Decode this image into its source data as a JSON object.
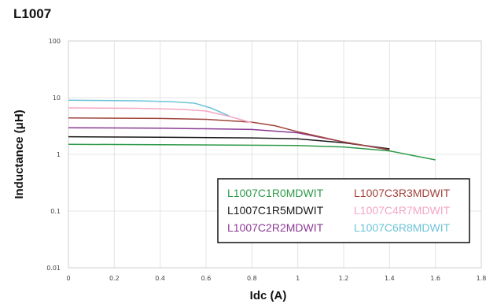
{
  "chart_data": {
    "type": "line",
    "title": "L1007",
    "xlabel": "Idc (A)",
    "ylabel": "Inductance (μH)",
    "xlim": [
      0,
      1.8
    ],
    "ylim": [
      0.01,
      100
    ],
    "yscale": "log",
    "grid": true,
    "legend_placement": "bottom-right",
    "x_ticks": [
      "0",
      "0.2",
      "0.4",
      "0.6",
      "0.8",
      "1",
      "1.2",
      "1.4",
      "1.6",
      "1.8"
    ],
    "y_ticks": [
      "100",
      "10",
      "1",
      "0.1",
      "0.01"
    ],
    "series": [
      {
        "name": "L1007C1R0MDWIT",
        "color": "#2e9a48",
        "points": [
          [
            0,
            1.5
          ],
          [
            0.4,
            1.48
          ],
          [
            0.8,
            1.45
          ],
          [
            1.0,
            1.43
          ],
          [
            1.2,
            1.35
          ],
          [
            1.4,
            1.15
          ],
          [
            1.6,
            0.8
          ]
        ]
      },
      {
        "name": "L1007C1R5MDWIT",
        "color": "#1a1a1a",
        "points": [
          [
            0,
            2.05
          ],
          [
            0.4,
            2.0
          ],
          [
            0.8,
            1.95
          ],
          [
            1.0,
            1.88
          ],
          [
            1.2,
            1.6
          ],
          [
            1.4,
            1.25
          ]
        ]
      },
      {
        "name": "L1007C2R2MDWIT",
        "color": "#8b3a95",
        "points": [
          [
            0,
            2.95
          ],
          [
            0.4,
            2.9
          ],
          [
            0.8,
            2.75
          ],
          [
            1.0,
            2.4
          ],
          [
            1.2,
            1.65
          ],
          [
            1.4,
            1.2
          ]
        ]
      },
      {
        "name": "L1007C3R3MDWIT",
        "color": "#a0433c",
        "points": [
          [
            0,
            4.4
          ],
          [
            0.4,
            4.3
          ],
          [
            0.6,
            4.15
          ],
          [
            0.8,
            3.7
          ],
          [
            0.9,
            3.2
          ],
          [
            1.0,
            2.5
          ],
          [
            1.2,
            1.65
          ],
          [
            1.4,
            1.2
          ]
        ]
      },
      {
        "name": "L1007C4R7MDWIT",
        "color": "#f4a6c6",
        "points": [
          [
            0,
            6.6
          ],
          [
            0.3,
            6.5
          ],
          [
            0.5,
            6.2
          ],
          [
            0.6,
            5.8
          ],
          [
            0.7,
            4.7
          ],
          [
            0.8,
            3.6
          ]
        ]
      },
      {
        "name": "L1007C6R8MDWIT",
        "color": "#6ec4d8",
        "points": [
          [
            0,
            9.0
          ],
          [
            0.3,
            8.8
          ],
          [
            0.45,
            8.5
          ],
          [
            0.55,
            8.0
          ],
          [
            0.62,
            6.6
          ],
          [
            0.68,
            5.2
          ],
          [
            0.7,
            4.8
          ]
        ]
      }
    ]
  }
}
